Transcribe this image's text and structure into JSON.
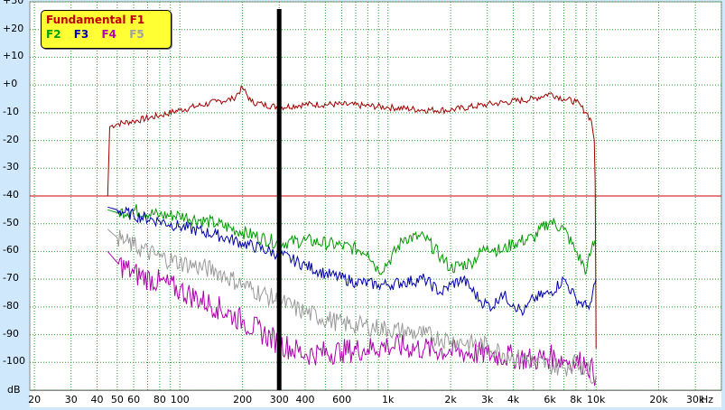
{
  "chart_data": {
    "type": "line",
    "title": "",
    "xlabel": "Hz",
    "ylabel": "dB",
    "x_scale": "log",
    "xlim": [
      19,
      40000
    ],
    "ylim": [
      -110,
      30
    ],
    "grid": true,
    "legend_position": "top-left",
    "y_ticks": [
      "+30",
      "+20",
      "+10",
      "+0",
      "-10",
      "-20",
      "-30",
      "-40",
      "-50",
      "-60",
      "-70",
      "-80",
      "-90",
      "-100"
    ],
    "x_ticks": [
      {
        "value": 20,
        "label": "20"
      },
      {
        "value": 30,
        "label": "30"
      },
      {
        "value": 40,
        "label": "40"
      },
      {
        "value": 50,
        "label": "50"
      },
      {
        "value": 60,
        "label": "60"
      },
      {
        "value": 80,
        "label": "80"
      },
      {
        "value": 100,
        "label": "100"
      },
      {
        "value": 200,
        "label": "200"
      },
      {
        "value": 300,
        "label": "300"
      },
      {
        "value": 400,
        "label": "400"
      },
      {
        "value": 600,
        "label": "600"
      },
      {
        "value": 1000,
        "label": "1k"
      },
      {
        "value": 2000,
        "label": "2k"
      },
      {
        "value": 3000,
        "label": "3k"
      },
      {
        "value": 4000,
        "label": "4k"
      },
      {
        "value": 6000,
        "label": "6k"
      },
      {
        "value": 8000,
        "label": "8k"
      },
      {
        "value": 10000,
        "label": "10k"
      },
      {
        "value": 20000,
        "label": "20k"
      },
      {
        "value": 30000,
        "label": "30k"
      }
    ],
    "reference_line": {
      "y": -40,
      "color": "#cc0000"
    },
    "cursor_x": 300,
    "series": [
      {
        "name": "Fundamental F1",
        "color": "#a00000",
        "x": [
          45,
          46,
          50,
          60,
          80,
          100,
          150,
          180,
          200,
          220,
          250,
          300,
          400,
          600,
          1000,
          1500,
          2000,
          3000,
          5000,
          6000,
          7000,
          8000,
          9000,
          9500,
          9800,
          9900,
          10000
        ],
        "y": [
          -40,
          -15,
          -14,
          -13,
          -11,
          -9,
          -6,
          -5,
          -1,
          -6,
          -7,
          -8,
          -7,
          -7,
          -8,
          -9,
          -9,
          -7,
          -5,
          -3,
          -5,
          -6,
          -10,
          -13,
          -20,
          -35,
          -95
        ]
      },
      {
        "name": "F2",
        "color": "#009900",
        "x": [
          45,
          50,
          60,
          80,
          100,
          150,
          200,
          300,
          400,
          600,
          800,
          900,
          1000,
          1200,
          1500,
          1800,
          2000,
          2500,
          3000,
          3500,
          4000,
          5000,
          6000,
          7000,
          8000,
          9000,
          9500,
          10000
        ],
        "y": [
          -45,
          -46,
          -45,
          -47,
          -47,
          -50,
          -53,
          -57,
          -56,
          -58,
          -60,
          -67,
          -64,
          -55,
          -55,
          -62,
          -66,
          -64,
          -58,
          -60,
          -57,
          -55,
          -49,
          -52,
          -60,
          -67,
          -59,
          -56
        ]
      },
      {
        "name": "F3",
        "color": "#0000aa",
        "x": [
          45,
          50,
          60,
          80,
          100,
          150,
          200,
          300,
          400,
          500,
          700,
          900,
          1000,
          1200,
          1500,
          1800,
          2000,
          2300,
          2800,
          3200,
          3500,
          4000,
          4500,
          5000,
          6000,
          7000,
          8000,
          9000,
          9500,
          10000
        ],
        "y": [
          -44,
          -45,
          -47,
          -49,
          -51,
          -54,
          -57,
          -61,
          -65,
          -68,
          -71,
          -72,
          -72,
          -71,
          -70,
          -75,
          -72,
          -70,
          -78,
          -80,
          -75,
          -79,
          -82,
          -77,
          -75,
          -70,
          -77,
          -80,
          -78,
          -70
        ]
      },
      {
        "name": "F4",
        "color": "#aa00aa",
        "x": [
          45,
          50,
          60,
          80,
          100,
          150,
          200,
          300,
          400,
          600,
          800,
          1000,
          1500,
          2000,
          3000,
          4000,
          5000,
          6000,
          7000,
          8000,
          9000,
          10000
        ],
        "y": [
          -60,
          -64,
          -68,
          -71,
          -74,
          -80,
          -85,
          -93,
          -97,
          -96,
          -95,
          -94,
          -95,
          -96,
          -97,
          -98,
          -99,
          -98,
          -99,
          -100,
          -100,
          -105
        ]
      },
      {
        "name": "F5",
        "color": "#999999",
        "x": [
          45,
          50,
          60,
          80,
          100,
          150,
          200,
          300,
          400,
          600,
          800,
          1000,
          1500,
          2000,
          3000,
          4000,
          5000,
          6000,
          7000,
          8000,
          9000,
          10000
        ],
        "y": [
          -52,
          -55,
          -58,
          -62,
          -64,
          -67,
          -72,
          -78,
          -82,
          -86,
          -87,
          -88,
          -90,
          -92,
          -94,
          -98,
          -100,
          -101,
          -102,
          -100,
          -103,
          -105
        ]
      }
    ]
  }
}
